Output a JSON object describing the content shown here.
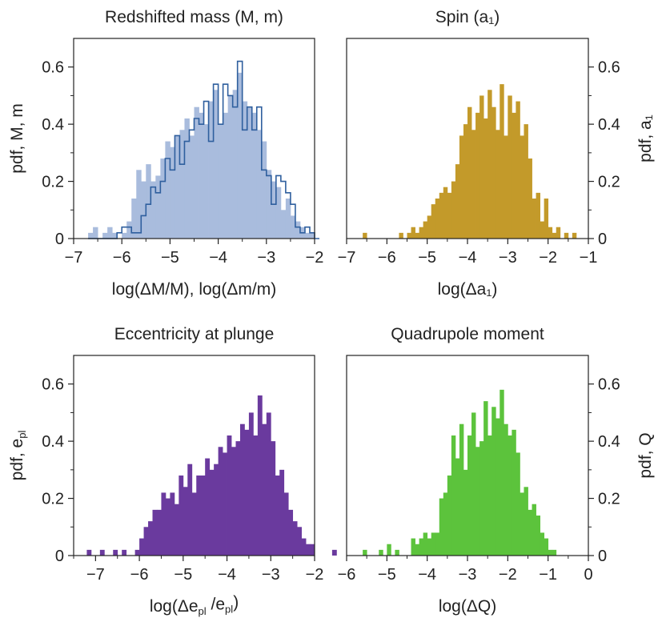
{
  "chart_data": [
    {
      "type": "bar",
      "title": "Redshifted mass (M, m)",
      "xlabel": "log(ΔM/M), log(Δm/m)",
      "ylabel": "pdf, M, m",
      "xlim": [
        -7,
        -2
      ],
      "ylim": [
        0,
        0.7
      ],
      "xticks": [
        -7,
        -6,
        -5,
        -4,
        -3,
        -2
      ],
      "yticks": [
        0,
        0.2,
        0.4,
        0.6
      ],
      "ytick_labels": [
        "0",
        "0.2",
        "0.4",
        "0.6"
      ],
      "y_axis_side": "left",
      "bin_start": -6.7,
      "bin_width": 0.1,
      "series": [
        {
          "name": "M",
          "style": "filled",
          "color": "#a9bcdd",
          "values": [
            0.02,
            0.04,
            0.0,
            0.02,
            0.04,
            0.02,
            0.0,
            0.02,
            0.06,
            0.14,
            0.24,
            0.2,
            0.26,
            0.2,
            0.22,
            0.28,
            0.34,
            0.32,
            0.36,
            0.38,
            0.42,
            0.36,
            0.46,
            0.44,
            0.4,
            0.48,
            0.52,
            0.4,
            0.44,
            0.5,
            0.52,
            0.58,
            0.48,
            0.46,
            0.44,
            0.38,
            0.34,
            0.24,
            0.2,
            0.18,
            0.1,
            0.14,
            0.08,
            0.06,
            0.04,
            0.02,
            0.02,
            0.0
          ]
        },
        {
          "name": "m",
          "style": "step",
          "color": "#2f5f9e",
          "values": [
            0.0,
            0.0,
            0.0,
            0.0,
            0.0,
            0.0,
            0.02,
            0.04,
            0.04,
            0.02,
            0.02,
            0.08,
            0.12,
            0.18,
            0.16,
            0.2,
            0.28,
            0.24,
            0.36,
            0.26,
            0.34,
            0.38,
            0.42,
            0.4,
            0.48,
            0.34,
            0.54,
            0.4,
            0.54,
            0.5,
            0.46,
            0.62,
            0.38,
            0.46,
            0.38,
            0.46,
            0.24,
            0.22,
            0.12,
            0.22,
            0.2,
            0.16,
            0.12,
            0.04,
            0.02,
            0.04,
            0.02,
            0.0
          ]
        }
      ]
    },
    {
      "type": "bar",
      "title": "Spin (a₁)",
      "xlabel": "log(Δa₁)",
      "ylabel": "pdf, a₁",
      "xlim": [
        -7,
        -1
      ],
      "ylim": [
        0,
        0.7
      ],
      "xticks": [
        -7,
        -6,
        -5,
        -4,
        -3,
        -2,
        -1
      ],
      "yticks": [
        0,
        0.2,
        0.4,
        0.6
      ],
      "ytick_labels": [
        "0",
        "0.2",
        "0.4",
        "0.6"
      ],
      "y_axis_side": "right",
      "bin_start": -6.9,
      "bin_width": 0.1,
      "series": [
        {
          "name": "a₁",
          "style": "filled",
          "color": "#c39a2a",
          "values": [
            0.0,
            0.0,
            0.0,
            0.02,
            0.0,
            0.0,
            0.0,
            0.0,
            0.0,
            0.0,
            0.0,
            0.0,
            0.02,
            0.0,
            0.02,
            0.04,
            0.02,
            0.04,
            0.06,
            0.08,
            0.12,
            0.14,
            0.16,
            0.18,
            0.16,
            0.2,
            0.26,
            0.36,
            0.4,
            0.46,
            0.38,
            0.44,
            0.5,
            0.42,
            0.52,
            0.46,
            0.38,
            0.54,
            0.36,
            0.5,
            0.44,
            0.48,
            0.36,
            0.4,
            0.28,
            0.14,
            0.16,
            0.06,
            0.14,
            0.04,
            0.02,
            0.04,
            0.0,
            0.02,
            0.0,
            0.02,
            0.0
          ]
        }
      ]
    },
    {
      "type": "bar",
      "title": "Eccentricity at plunge",
      "xlabel": "log(Δe_pl /e_pl)",
      "ylabel": "pdf, e_pl",
      "xlim": [
        -7.5,
        -2
      ],
      "ylim": [
        0,
        0.7
      ],
      "xticks": [
        -7,
        -6,
        -5,
        -4,
        -3,
        -2
      ],
      "yticks": [
        0,
        0.2,
        0.4,
        0.6
      ],
      "ytick_labels": [
        "0",
        "0.2",
        "0.4",
        "0.6"
      ],
      "y_axis_side": "left",
      "bin_start": -7.2,
      "bin_width": 0.1,
      "series": [
        {
          "name": "e_pl",
          "style": "filled",
          "color": "#6a3a9e",
          "values": [
            0.02,
            0.0,
            0.0,
            0.02,
            0.0,
            0.0,
            0.02,
            0.0,
            0.02,
            0.0,
            0.0,
            0.02,
            0.06,
            0.1,
            0.12,
            0.16,
            0.16,
            0.22,
            0.2,
            0.22,
            0.18,
            0.28,
            0.24,
            0.32,
            0.22,
            0.28,
            0.28,
            0.34,
            0.3,
            0.32,
            0.38,
            0.36,
            0.42,
            0.38,
            0.4,
            0.46,
            0.44,
            0.5,
            0.42,
            0.56,
            0.46,
            0.5,
            0.4,
            0.28,
            0.3,
            0.22,
            0.16,
            0.12,
            0.1,
            0.06,
            0.04,
            0.04,
            0.0,
            0.0,
            0.0,
            0.0,
            0.02
          ]
        }
      ]
    },
    {
      "type": "bar",
      "title": "Quadrupole moment",
      "xlabel": "log(ΔQ)",
      "ylabel": "pdf, Q",
      "xlim": [
        -6,
        0
      ],
      "ylim": [
        0,
        0.7
      ],
      "xticks": [
        -6,
        -5,
        -4,
        -3,
        -2,
        -1,
        0
      ],
      "yticks": [
        0,
        0.2,
        0.4,
        0.6
      ],
      "ytick_labels": [
        "0",
        "0.2",
        "0.4",
        "0.6"
      ],
      "y_axis_side": "right",
      "bin_start": -5.6,
      "bin_width": 0.1,
      "series": [
        {
          "name": "Q",
          "style": "filled",
          "color": "#5cc33c",
          "values": [
            0.02,
            0.0,
            0.0,
            0.0,
            0.02,
            0.0,
            0.04,
            0.0,
            0.02,
            0.0,
            0.0,
            0.0,
            0.06,
            0.04,
            0.06,
            0.08,
            0.06,
            0.08,
            0.08,
            0.2,
            0.22,
            0.28,
            0.42,
            0.34,
            0.46,
            0.3,
            0.42,
            0.5,
            0.38,
            0.4,
            0.54,
            0.42,
            0.52,
            0.48,
            0.58,
            0.46,
            0.42,
            0.44,
            0.36,
            0.22,
            0.24,
            0.16,
            0.18,
            0.14,
            0.08,
            0.06,
            0.02,
            0.02,
            0.0
          ]
        }
      ]
    }
  ]
}
